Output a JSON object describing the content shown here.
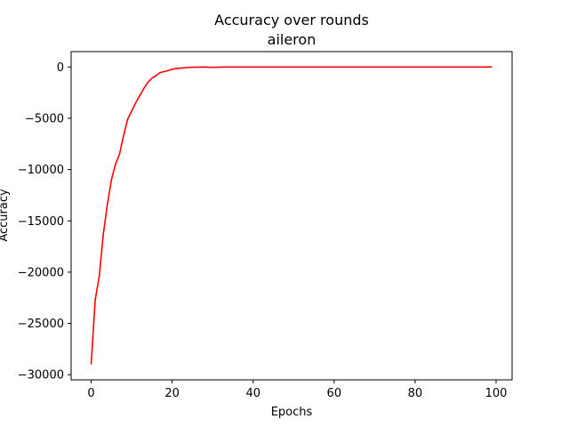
{
  "chart_data": {
    "type": "line",
    "title": "Accuracy over rounds",
    "subtitle": "aileron",
    "xlabel": "Epochs",
    "ylabel": "Accuracy",
    "xlim": [
      -4.95,
      103.95
    ],
    "ylim": [
      -30500,
      1500
    ],
    "xticks": [
      0,
      20,
      40,
      60,
      80,
      100
    ],
    "yticks": [
      0,
      -5000,
      -10000,
      -15000,
      -20000,
      -25000,
      -30000
    ],
    "xtick_labels": [
      "0",
      "20",
      "40",
      "60",
      "80",
      "100"
    ],
    "ytick_labels": [
      "0",
      "−5000",
      "−10000",
      "−15000",
      "−20000",
      "−25000",
      "−30000"
    ],
    "grid": false,
    "series": [
      {
        "color": "#ff0000",
        "x": [
          0,
          1,
          2,
          3,
          4,
          5,
          6,
          7,
          8,
          9,
          10,
          11,
          12,
          13,
          14,
          15,
          16,
          17,
          18,
          19,
          20,
          21,
          22,
          23,
          24,
          25,
          26,
          27,
          28,
          29,
          30,
          31,
          32,
          33,
          34,
          35,
          36,
          37,
          38,
          39,
          40,
          41,
          42,
          43,
          44,
          45,
          46,
          47,
          48,
          49,
          50,
          51,
          52,
          53,
          54,
          55,
          56,
          57,
          58,
          59,
          60,
          61,
          62,
          63,
          64,
          65,
          66,
          67,
          68,
          69,
          70,
          71,
          72,
          73,
          74,
          75,
          76,
          77,
          78,
          79,
          80,
          81,
          82,
          83,
          84,
          85,
          86,
          87,
          88,
          89,
          90,
          91,
          92,
          93,
          94,
          95,
          96,
          97,
          98,
          99
        ],
        "y": [
          -29000,
          -22700,
          -20400,
          -16300,
          -13400,
          -11000,
          -9500,
          -8500,
          -6700,
          -5100,
          -4300,
          -3500,
          -2800,
          -2100,
          -1500,
          -1100,
          -850,
          -550,
          -450,
          -350,
          -220,
          -150,
          -110,
          -80,
          -40,
          -20,
          -20,
          -10,
          0,
          -20,
          -30,
          -20,
          -10,
          -5,
          0,
          0,
          0,
          0,
          0,
          0,
          0,
          0,
          0,
          0,
          0,
          0,
          0,
          0,
          0,
          0,
          0,
          0,
          0,
          0,
          0,
          0,
          0,
          0,
          0,
          0,
          0,
          0,
          0,
          0,
          0,
          0,
          0,
          0,
          0,
          0,
          0,
          0,
          0,
          0,
          0,
          0,
          0,
          0,
          0,
          0,
          0,
          0,
          0,
          0,
          0,
          0,
          0,
          0,
          0,
          0,
          0,
          0,
          0,
          0,
          0,
          0,
          0,
          0,
          0,
          0
        ]
      }
    ]
  }
}
